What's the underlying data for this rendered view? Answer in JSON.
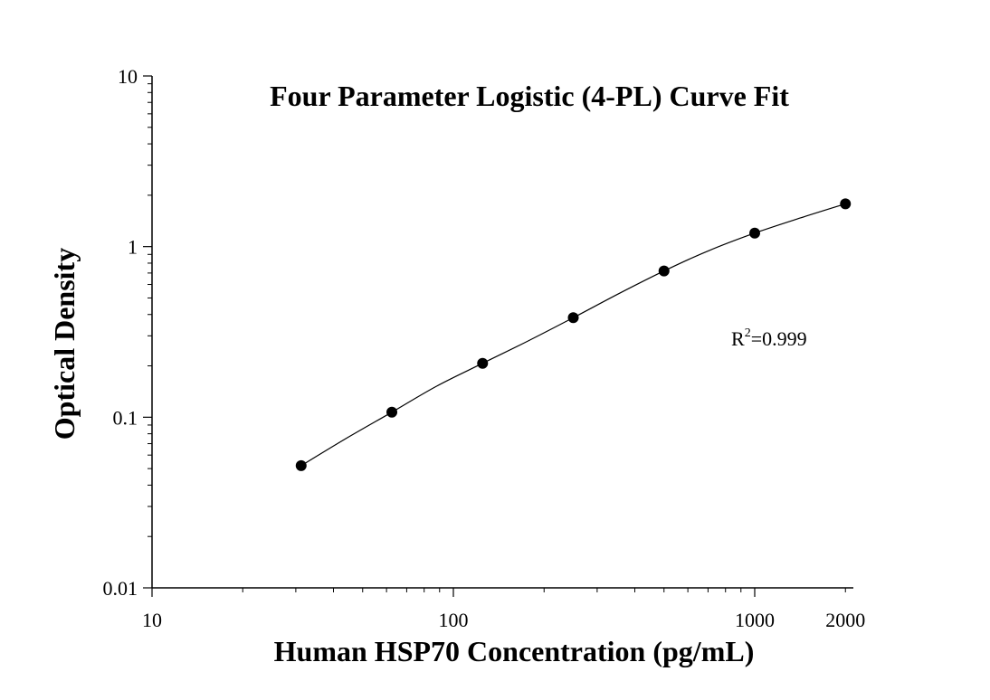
{
  "chart_data": {
    "type": "scatter",
    "title": "Four Parameter Logistic (4-PL) Curve Fit",
    "xlabel": "Human HSP70 Concentration (pg/mL)",
    "ylabel": "Optical Density",
    "x_scale": "log",
    "y_scale": "log",
    "xlim": [
      10,
      2400
    ],
    "ylim": [
      0.01,
      10
    ],
    "x_ticks": [
      {
        "value": 10,
        "label": "10"
      },
      {
        "value": 100,
        "label": "100"
      },
      {
        "value": 1000,
        "label": "1000"
      },
      {
        "value": 2000,
        "label": "2000"
      }
    ],
    "y_ticks": [
      {
        "value": 0.01,
        "label": "0.01"
      },
      {
        "value": 0.1,
        "label": "0.1"
      },
      {
        "value": 1,
        "label": "1"
      },
      {
        "value": 10,
        "label": "10"
      }
    ],
    "grid": false,
    "x": [
      31.25,
      62.5,
      125,
      250,
      500,
      1000,
      2000
    ],
    "y": [
      0.052,
      0.107,
      0.207,
      0.383,
      0.72,
      1.2,
      1.78
    ],
    "curve_points": [
      [
        31.25,
        0.052
      ],
      [
        44,
        0.075
      ],
      [
        62.5,
        0.107
      ],
      [
        88,
        0.152
      ],
      [
        125,
        0.207
      ],
      [
        177,
        0.28
      ],
      [
        250,
        0.383
      ],
      [
        354,
        0.53
      ],
      [
        500,
        0.72
      ],
      [
        707,
        0.95
      ],
      [
        1000,
        1.2
      ],
      [
        1414,
        1.47
      ],
      [
        2000,
        1.78
      ]
    ],
    "annotation": {
      "base": "R",
      "superscript": "2",
      "rest": "=0.999"
    }
  }
}
